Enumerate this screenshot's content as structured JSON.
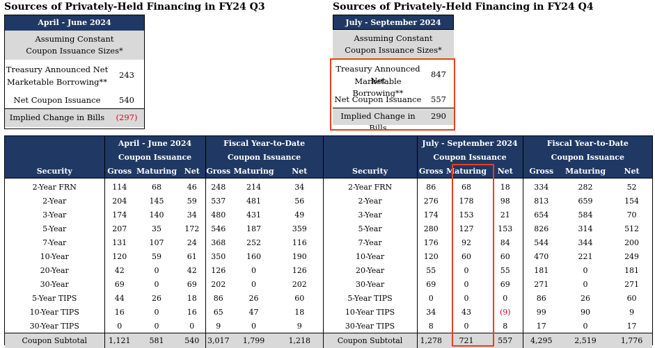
{
  "q3": {
    "title": "Sources of Privately-Held Financing in FY24 Q3",
    "period": "April - June 2024",
    "assumption_line1": "Assuming Constant",
    "assumption_line2": "Coupon Issuance Sizes*",
    "borrowing_line1": "Treasury Announced Net",
    "borrowing_line2": "Marketable Borrowing**",
    "borrowing_value": "243",
    "coupon_label": "Net Coupon Issuance",
    "coupon_value": "540",
    "bills_label": "Implied Change in Bills",
    "bills_value": "(297)"
  },
  "q4": {
    "title": "Sources of Privately-Held Financing in FY24 Q4",
    "period": "July - September 2024",
    "assumption_line1": "Assuming Constant",
    "assumption_line2": "Coupon Issuance Sizes*",
    "borrowing_line1": "Treasury Announced Net",
    "borrowing_line2": "Marketable Borrowing**",
    "borrowing_value": "847",
    "coupon_label": "Net Coupon Issuance",
    "coupon_value": "557",
    "bills_label": "Implied Change in Bills",
    "bills_value": "290"
  },
  "left_table": {
    "group1_line1": "April - June 2024",
    "group1_line2": "Coupon Issuance",
    "group2_line1": "Fiscal Year-to-Date",
    "group2_line2": "Coupon Issuance",
    "columns": [
      "Security",
      "Gross",
      "Maturing",
      "Net",
      "Gross",
      "Maturing",
      "Net"
    ],
    "rows": [
      [
        "2-Year FRN",
        "114",
        "68",
        "46",
        "248",
        "214",
        "34"
      ],
      [
        "2-Year",
        "204",
        "145",
        "59",
        "537",
        "481",
        "56"
      ],
      [
        "3-Year",
        "174",
        "140",
        "34",
        "480",
        "431",
        "49"
      ],
      [
        "5-Year",
        "207",
        "35",
        "172",
        "546",
        "187",
        "359"
      ],
      [
        "7-Year",
        "131",
        "107",
        "24",
        "368",
        "252",
        "116"
      ],
      [
        "10-Year",
        "120",
        "59",
        "61",
        "350",
        "160",
        "190"
      ],
      [
        "20-Year",
        "42",
        "0",
        "42",
        "126",
        "0",
        "126"
      ],
      [
        "30-Year",
        "69",
        "0",
        "69",
        "202",
        "0",
        "202"
      ],
      [
        "5-Year TIPS",
        "44",
        "26",
        "18",
        "86",
        "26",
        "60"
      ],
      [
        "10-Year TIPS",
        "16",
        "0",
        "16",
        "65",
        "47",
        "18"
      ],
      [
        "30-Year TIPS",
        "0",
        "0",
        "0",
        "9",
        "0",
        "9"
      ]
    ],
    "subtotal": [
      "Coupon Subtotal",
      "1,121",
      "581",
      "540",
      "3,017",
      "1,799",
      "1,218"
    ]
  },
  "right_table": {
    "group1_line1": "July - September 2024",
    "group1_line2": "Coupon Issuance",
    "group2_line1": "Fiscal Year-to-Date",
    "group2_line2": "Coupon Issuance",
    "columns": [
      "Security",
      "Gross",
      "Maturing",
      "Net",
      "Gross",
      "Maturing",
      "Net"
    ],
    "rows": [
      [
        "2-Year FRN",
        "86",
        "68",
        "18",
        "334",
        "282",
        "52"
      ],
      [
        "2-Year",
        "276",
        "178",
        "98",
        "813",
        "659",
        "154"
      ],
      [
        "3-Year",
        "174",
        "153",
        "21",
        "654",
        "584",
        "70"
      ],
      [
        "5-Year",
        "280",
        "127",
        "153",
        "826",
        "314",
        "512"
      ],
      [
        "7-Year",
        "176",
        "92",
        "84",
        "544",
        "344",
        "200"
      ],
      [
        "10-Year",
        "120",
        "60",
        "60",
        "470",
        "221",
        "249"
      ],
      [
        "20-Year",
        "55",
        "0",
        "55",
        "181",
        "0",
        "181"
      ],
      [
        "30-Year",
        "69",
        "0",
        "69",
        "271",
        "0",
        "271"
      ],
      [
        "5-Year TIPS",
        "0",
        "0",
        "0",
        "86",
        "26",
        "60"
      ],
      [
        "10-Year TIPS",
        "34",
        "43",
        "(9)",
        "99",
        "90",
        "9"
      ],
      [
        "30-Year TIPS",
        "8",
        "0",
        "8",
        "17",
        "0",
        "17"
      ]
    ],
    "subtotal": [
      "Coupon Subtotal",
      "1,278",
      "721",
      "557",
      "4,295",
      "2,519",
      "1,776"
    ]
  },
  "colors": {
    "header_bg": "#1f3864",
    "grey_bg": "#d9d9d9",
    "highlight": "#e8401c",
    "negative": "#e0001b"
  }
}
